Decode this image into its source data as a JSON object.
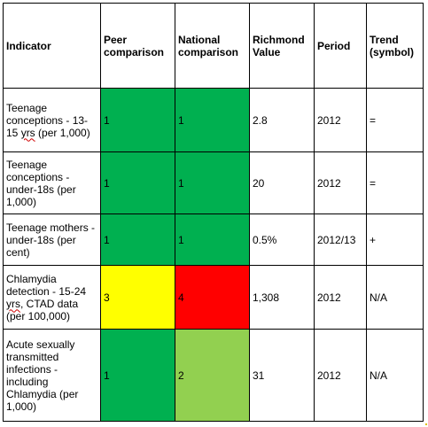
{
  "headers": {
    "indicator": "Indicator",
    "peer": "Peer comparison",
    "national": "National comparison",
    "richmond": "Richmond Value",
    "period": "Period",
    "trend": "Trend (symbol)"
  },
  "rows": [
    {
      "indicator_parts": [
        "Teenage conceptions - 13-15 ",
        "yrs",
        " (per 1,000)"
      ],
      "peer": "1",
      "peer_color": "#00b050",
      "national": "1",
      "national_color": "#00b050",
      "richmond": "2.8",
      "period": "2012",
      "trend": "="
    },
    {
      "indicator_parts": [
        "Teenage conceptions - under-18s (per 1,000)",
        "",
        ""
      ],
      "peer": "1",
      "peer_color": "#00b050",
      "national": "1",
      "national_color": "#00b050",
      "richmond": "20",
      "period": "2012",
      "trend": "="
    },
    {
      "indicator_parts": [
        "Teenage mothers - under-18s (per cent)",
        "",
        ""
      ],
      "peer": "1",
      "peer_color": "#00b050",
      "national": "1",
      "national_color": "#00b050",
      "richmond": "0.5%",
      "period": "2012/13",
      "trend": "+"
    },
    {
      "indicator_parts": [
        "Chlamydia detection - 15-24 ",
        "yrs",
        ", CTAD data (per 100,000)"
      ],
      "peer": "3",
      "peer_color": "#ffff00",
      "national": "4",
      "national_color": "#ff0000",
      "richmond": "1,308",
      "period": "2012",
      "trend": "N/A"
    },
    {
      "indicator_parts": [
        "Acute sexually transmitted infections - including Chlamydia (per 1,000)",
        "",
        ""
      ],
      "peer": "1",
      "peer_color": "#00b050",
      "national": "2",
      "national_color": "#92d050",
      "richmond": "31",
      "period": "2012",
      "trend": "N/A"
    }
  ]
}
